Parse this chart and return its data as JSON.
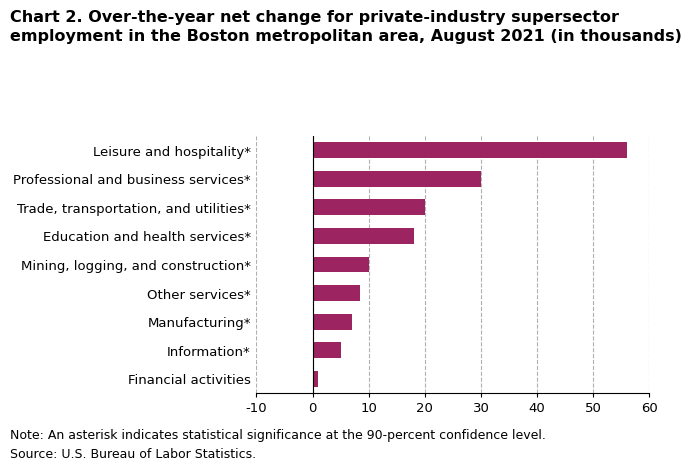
{
  "title": "Chart 2. Over-the-year net change for private-industry supersector\nemployment in the Boston metropolitan area, August 2021 (in thousands)",
  "categories": [
    "Financial activities",
    "Information*",
    "Manufacturing*",
    "Other services*",
    "Mining, logging, and construction*",
    "Education and health services*",
    "Trade, transportation, and utilities*",
    "Professional and business services*",
    "Leisure and hospitality*"
  ],
  "values": [
    1.0,
    5.0,
    7.0,
    8.5,
    10.0,
    18.0,
    20.0,
    30.0,
    56.0
  ],
  "bar_color": "#9b2461",
  "xlim": [
    -10,
    60
  ],
  "xticks": [
    -10,
    0,
    10,
    20,
    30,
    40,
    50,
    60
  ],
  "note1": "Note: An asterisk indicates statistical significance at the 90-percent confidence level.",
  "note2": "Source: U.S. Bureau of Labor Statistics.",
  "grid_color": "#b0b0b0",
  "background_color": "#ffffff",
  "bar_height": 0.55,
  "title_fontsize": 11.5,
  "tick_fontsize": 9.5,
  "note_fontsize": 9.0
}
